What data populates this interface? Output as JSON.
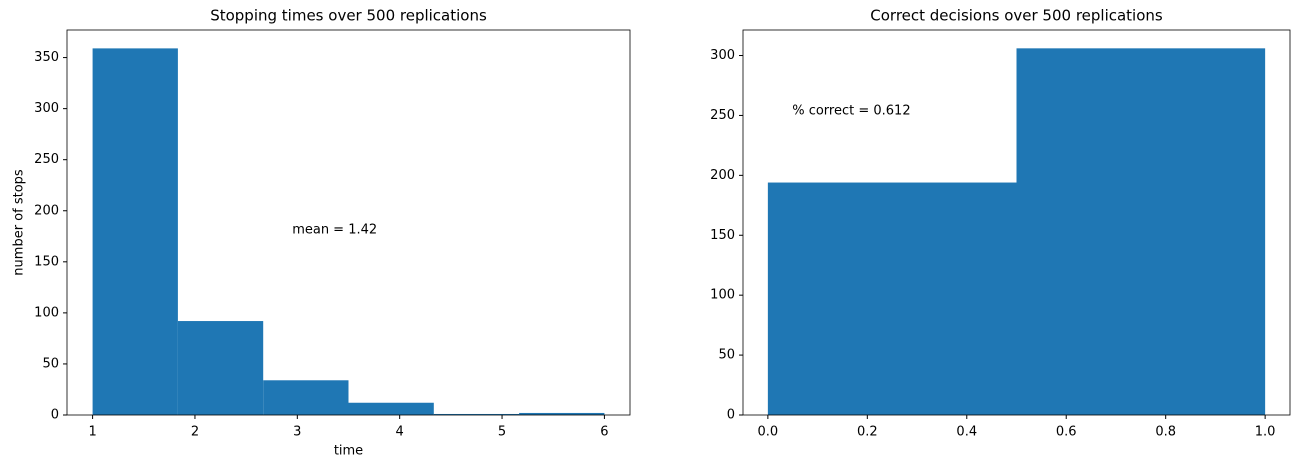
{
  "chart_data": [
    {
      "type": "histogram",
      "title": "Stopping times over 500 replications",
      "x_label": "time",
      "y_label": "number of stops",
      "bins": [
        1,
        1.8333333,
        2.6666667,
        3.5,
        4.3333333,
        5.1666667,
        6
      ],
      "values": [
        359,
        92,
        34,
        12,
        1,
        2
      ],
      "color": "#1f77b4",
      "xlim": [
        0.75,
        6.25
      ],
      "ylim": [
        0,
        377
      ],
      "xticks": [
        1,
        2,
        3,
        4,
        5,
        6
      ],
      "yticks": [
        0,
        50,
        100,
        150,
        200,
        250,
        300,
        350
      ],
      "annotation": "mean = 1.42"
    },
    {
      "type": "histogram",
      "title": "Correct decisions over 500 replications",
      "bins": [
        0,
        0.5,
        1
      ],
      "values": [
        194,
        306
      ],
      "color": "#1f77b4",
      "xlim": [
        -0.05,
        1.05
      ],
      "ylim": [
        0,
        321.3
      ],
      "xticks": [
        {
          "value": 0,
          "label": "0.0"
        },
        0.2,
        0.4,
        0.6,
        0.8,
        {
          "value": 1,
          "label": "1.0"
        }
      ],
      "yticks": [
        0,
        50,
        100,
        150,
        200,
        250,
        300
      ],
      "annotation": "% correct = 0.612"
    }
  ]
}
